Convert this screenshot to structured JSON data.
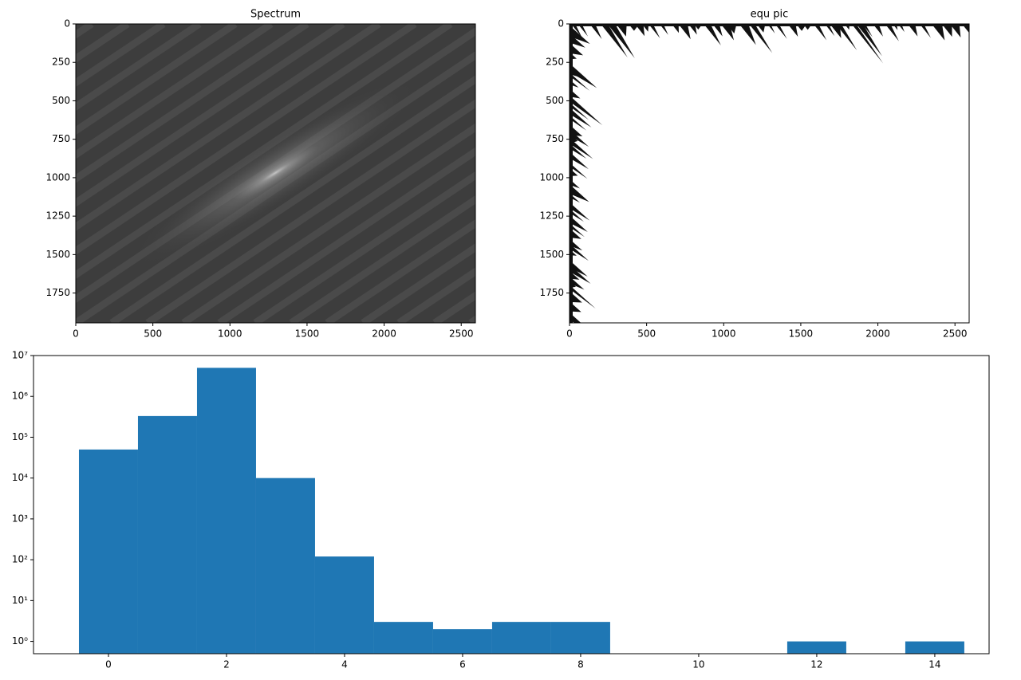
{
  "chart_data": [
    {
      "type": "image",
      "title": "Spectrum",
      "xlim": [
        0,
        2592
      ],
      "ylim": [
        1944,
        0
      ],
      "xticks": [
        0,
        500,
        1000,
        1500,
        2000,
        2500
      ],
      "yticks": [
        0,
        250,
        500,
        750,
        1000,
        1250,
        1500,
        1750
      ]
    },
    {
      "type": "image",
      "title": "equ pic",
      "xlim": [
        0,
        2592
      ],
      "ylim": [
        1944,
        0
      ],
      "xticks": [
        0,
        500,
        1000,
        1500,
        2000,
        2500
      ],
      "yticks": [
        0,
        250,
        500,
        750,
        1000,
        1250,
        1500,
        1750
      ]
    },
    {
      "type": "bar",
      "x": [
        0,
        1,
        2,
        3,
        4,
        5,
        6,
        7,
        8,
        12,
        14
      ],
      "values": [
        50000,
        330000,
        5000000,
        10000,
        120,
        3,
        2,
        3,
        3,
        1,
        1
      ],
      "color": "#1f77b4",
      "log": true,
      "xlim": [
        -1.27,
        14.92
      ],
      "ylim": [
        0.5,
        10000000
      ],
      "xticks": [
        0,
        2,
        4,
        6,
        8,
        10,
        12,
        14
      ],
      "yticks": [
        {
          "value": 1,
          "label": "10⁰"
        },
        {
          "value": 10,
          "label": "10¹"
        },
        {
          "value": 100,
          "label": "10²"
        },
        {
          "value": 1000,
          "label": "10³"
        },
        {
          "value": 10000,
          "label": "10⁴"
        },
        {
          "value": 100000,
          "label": "10⁵"
        },
        {
          "value": 1000000,
          "label": "10⁶"
        },
        {
          "value": 10000000,
          "label": "10⁷"
        }
      ]
    }
  ]
}
